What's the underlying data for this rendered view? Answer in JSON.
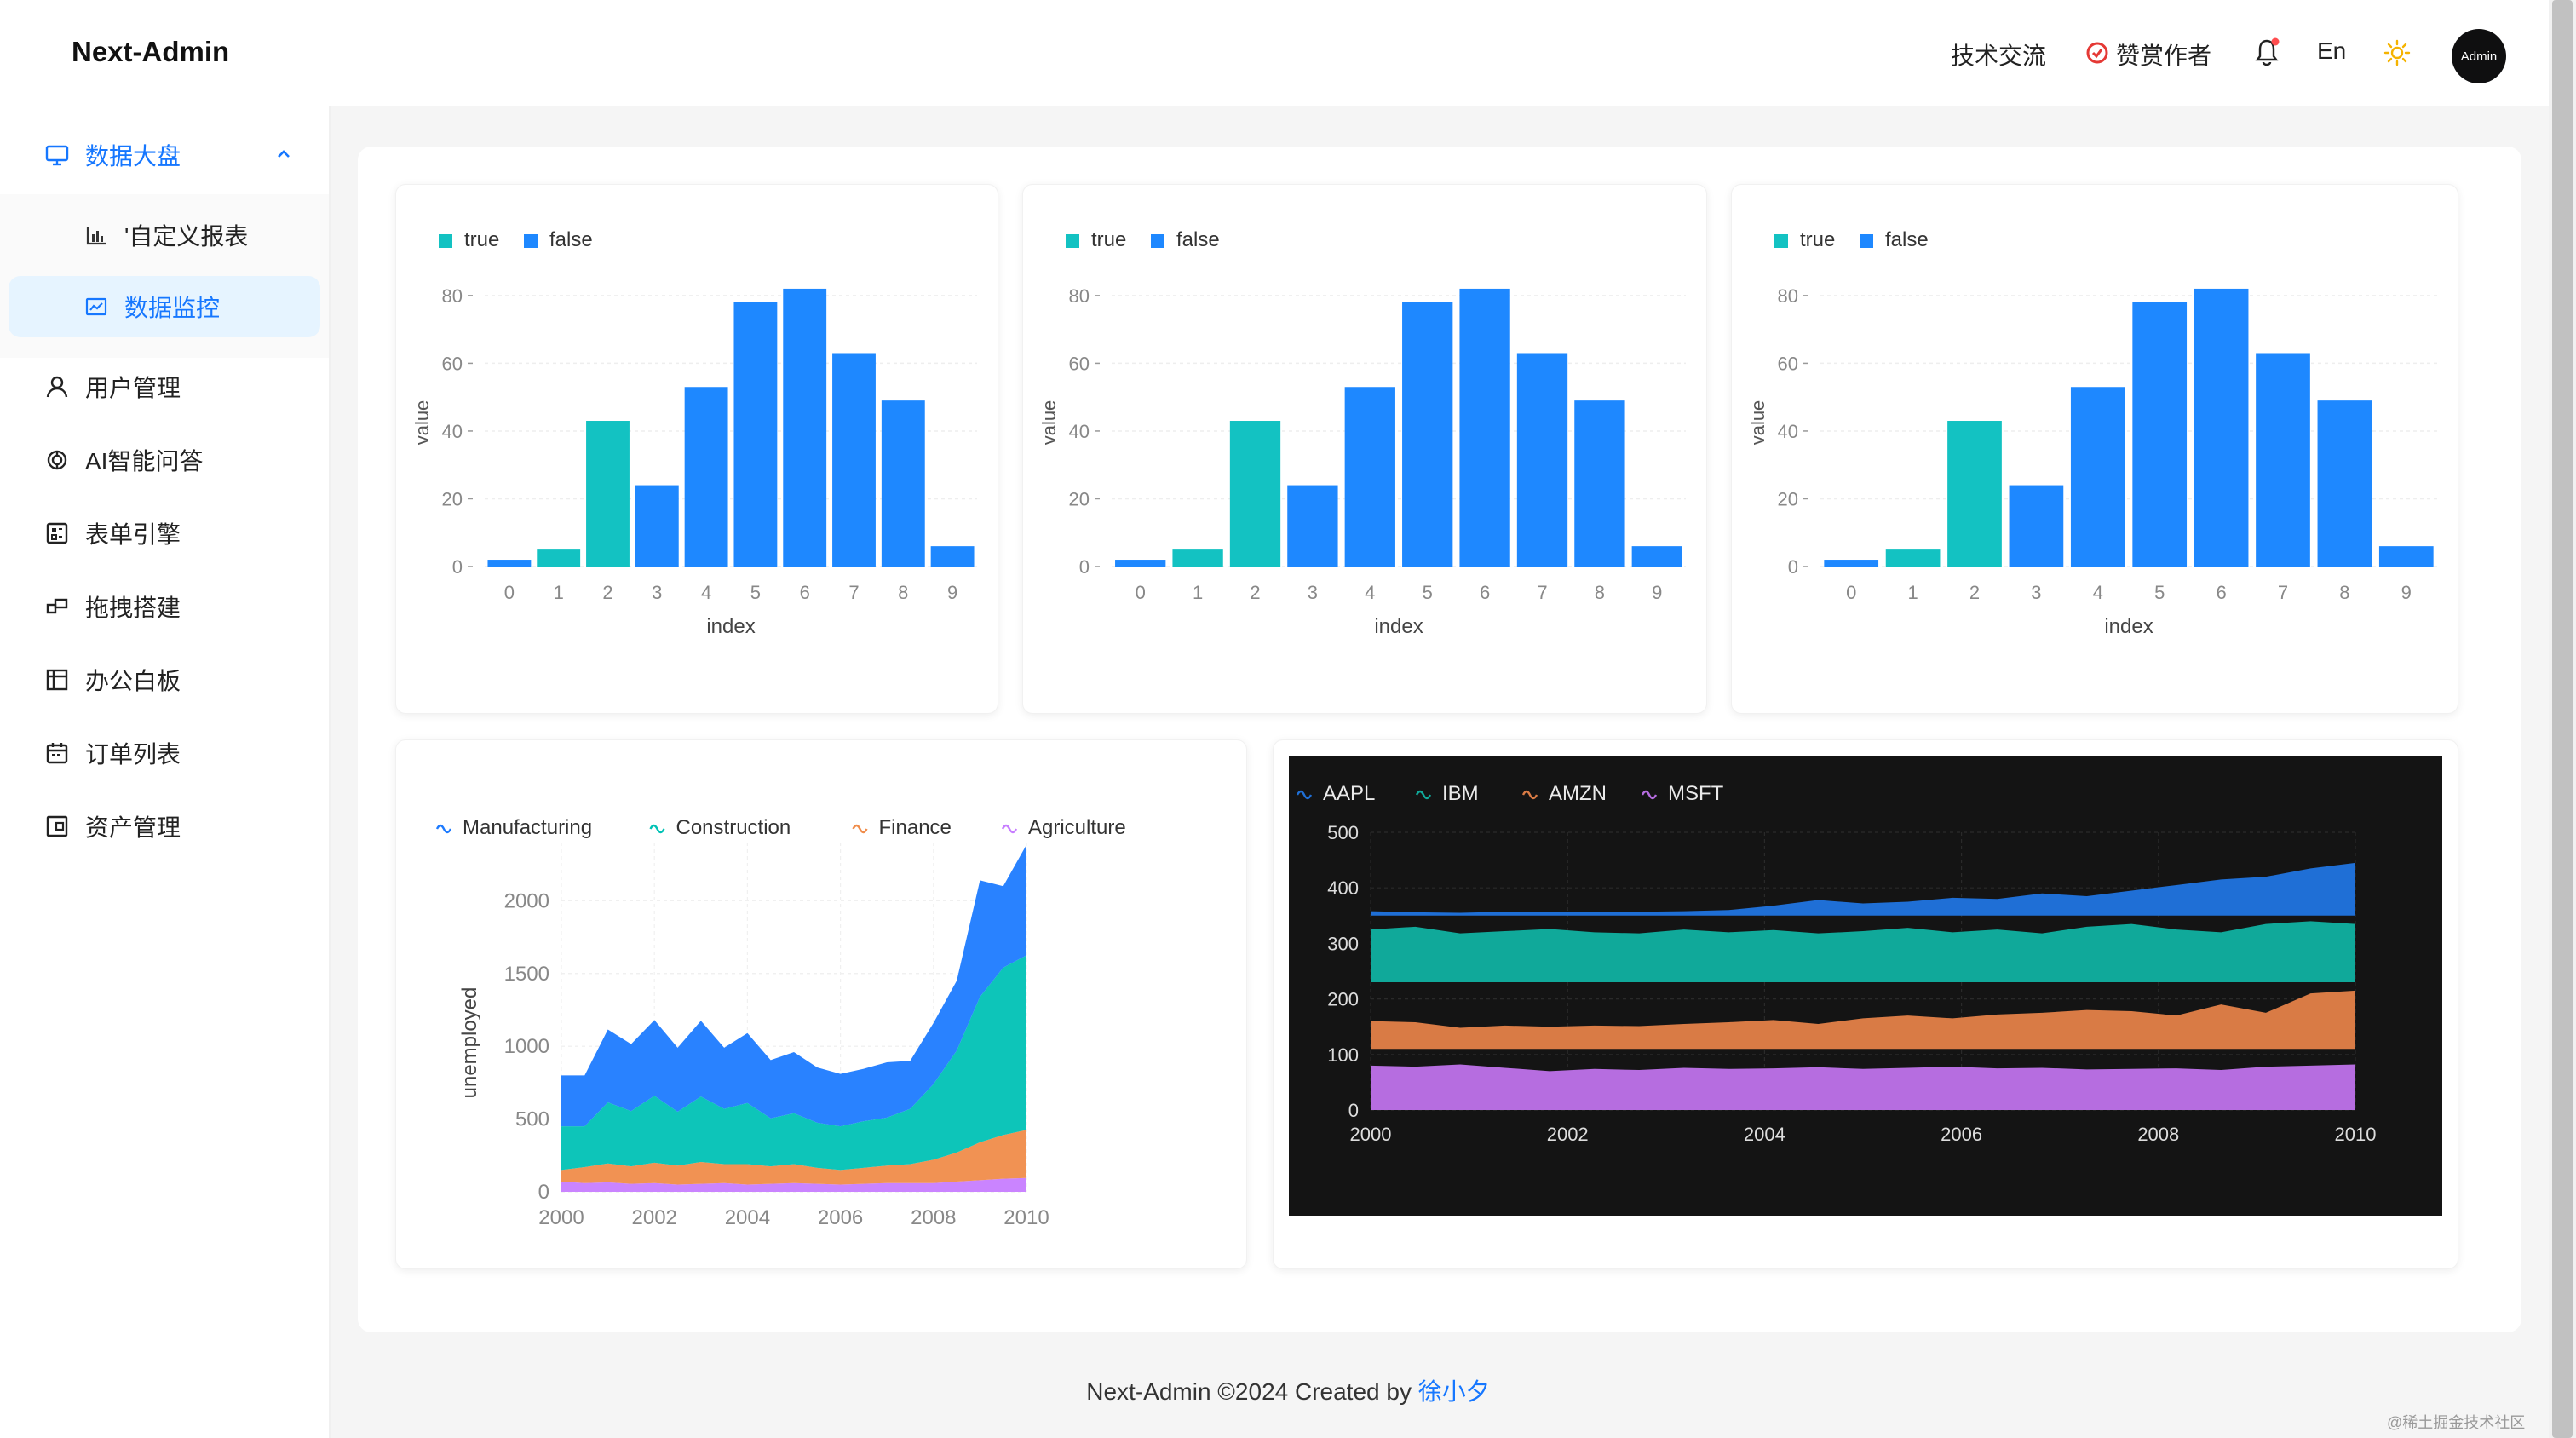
{
  "header": {
    "logo": "Next-Admin",
    "links": {
      "tech": "技术交流",
      "reward": "赞赏作者",
      "lang": "En"
    },
    "avatar": "Admin",
    "icons": [
      "reward-icon",
      "bell-icon",
      "sun-icon"
    ]
  },
  "sidebar": {
    "items": [
      {
        "label": "数据大盘",
        "icon": "monitor-icon"
      },
      {
        "label": "'自定义报表",
        "icon": "bar-chart-icon"
      },
      {
        "label": "数据监控",
        "icon": "line-chart-icon"
      },
      {
        "label": "用户管理",
        "icon": "user-icon"
      },
      {
        "label": "AI智能问答",
        "icon": "openai-icon"
      },
      {
        "label": "表单引擎",
        "icon": "form-icon"
      },
      {
        "label": "拖拽搭建",
        "icon": "drag-icon"
      },
      {
        "label": "办公白板",
        "icon": "whiteboard-icon"
      },
      {
        "label": "订单列表",
        "icon": "calendar-icon"
      },
      {
        "label": "资产管理",
        "icon": "asset-icon"
      }
    ]
  },
  "colors": {
    "accent": "#1677ff",
    "bar_true": "#13c2c2",
    "bar_false": "#1e88ff"
  },
  "chart_data": [
    {
      "type": "bar",
      "legend": [
        "true",
        "false"
      ],
      "categories": [
        "0",
        "1",
        "2",
        "3",
        "4",
        "5",
        "6",
        "7",
        "8",
        "9"
      ],
      "values": [
        2,
        5,
        43,
        24,
        53,
        78,
        82,
        63,
        49,
        6
      ],
      "groups": [
        "false",
        "true",
        "true",
        "false",
        "false",
        "false",
        "false",
        "false",
        "false",
        "false"
      ],
      "xlabel": "index",
      "ylabel": "value",
      "ylim": [
        0,
        85
      ],
      "yticks": [
        "0",
        "20",
        "40",
        "60",
        "80"
      ]
    },
    {
      "type": "bar",
      "legend": [
        "true",
        "false"
      ],
      "categories": [
        "0",
        "1",
        "2",
        "3",
        "4",
        "5",
        "6",
        "7",
        "8",
        "9"
      ],
      "values": [
        2,
        5,
        43,
        24,
        53,
        78,
        82,
        63,
        49,
        6
      ],
      "groups": [
        "false",
        "true",
        "true",
        "false",
        "false",
        "false",
        "false",
        "false",
        "false",
        "false"
      ],
      "xlabel": "index",
      "ylabel": "value",
      "ylim": [
        0,
        85
      ],
      "yticks": [
        "0",
        "20",
        "40",
        "60",
        "80"
      ]
    },
    {
      "type": "bar",
      "legend": [
        "true",
        "false"
      ],
      "categories": [
        "0",
        "1",
        "2",
        "3",
        "4",
        "5",
        "6",
        "7",
        "8",
        "9"
      ],
      "values": [
        2,
        5,
        43,
        24,
        53,
        78,
        82,
        63,
        49,
        6
      ],
      "groups": [
        "false",
        "true",
        "true",
        "false",
        "false",
        "false",
        "false",
        "false",
        "false",
        "false"
      ],
      "xlabel": "index",
      "ylabel": "value",
      "ylim": [
        0,
        85
      ],
      "yticks": [
        "0",
        "20",
        "40",
        "60",
        "80"
      ]
    },
    {
      "type": "area",
      "stacked": true,
      "ylabel": "unemployed",
      "xticks": [
        "2000",
        "2002",
        "2004",
        "2006",
        "2008",
        "2010"
      ],
      "yticks": [
        "0",
        "500",
        "1000",
        "1500",
        "2000"
      ],
      "ylim": [
        0,
        2400
      ],
      "x": [
        2000,
        2000.5,
        2001,
        2001.5,
        2002,
        2002.5,
        2003,
        2003.5,
        2004,
        2004.5,
        2005,
        2005.5,
        2006,
        2006.5,
        2007,
        2007.5,
        2008,
        2008.5,
        2009,
        2009.5,
        2010
      ],
      "series": [
        {
          "name": "Agriculture",
          "color": "#c77dff",
          "values": [
            70,
            60,
            65,
            55,
            60,
            50,
            55,
            60,
            50,
            55,
            60,
            55,
            50,
            55,
            60,
            60,
            60,
            70,
            80,
            90,
            95
          ]
        },
        {
          "name": "Finance",
          "color": "#f08c4a",
          "values": [
            80,
            110,
            130,
            120,
            140,
            130,
            150,
            130,
            140,
            120,
            130,
            110,
            100,
            110,
            120,
            130,
            160,
            200,
            260,
            300,
            330
          ]
        },
        {
          "name": "Construction",
          "color": "#00c2b5",
          "values": [
            300,
            280,
            420,
            380,
            460,
            370,
            450,
            380,
            420,
            330,
            350,
            310,
            300,
            320,
            330,
            380,
            520,
            700,
            1000,
            1150,
            1200
          ]
        },
        {
          "name": "Manufacturing",
          "color": "#1e7bff",
          "values": [
            350,
            350,
            500,
            460,
            520,
            440,
            520,
            420,
            480,
            400,
            420,
            380,
            360,
            360,
            380,
            330,
            420,
            480,
            800,
            560,
            760
          ]
        }
      ]
    },
    {
      "type": "area",
      "stacked": false,
      "theme": "dark",
      "xticks": [
        "2000",
        "2002",
        "2004",
        "2006",
        "2008",
        "2010"
      ],
      "yticks": [
        "0",
        "100",
        "200",
        "300",
        "400",
        "500"
      ],
      "ylim": [
        0,
        500
      ],
      "series": [
        {
          "name": "AAPL",
          "color": "#1f6fd6",
          "values": [
            358,
            356,
            355,
            357,
            356,
            356,
            357,
            358,
            360,
            368,
            378,
            372,
            375,
            382,
            380,
            390,
            385,
            395,
            405,
            415,
            420,
            435,
            445
          ]
        },
        {
          "name": "IBM",
          "color": "#10a99a",
          "values": [
            325,
            330,
            318,
            322,
            326,
            320,
            318,
            325,
            320,
            324,
            318,
            322,
            328,
            320,
            325,
            318,
            330,
            335,
            325,
            320,
            335,
            340,
            335
          ]
        },
        {
          "name": "AMZN",
          "color": "#d97b45",
          "values": [
            160,
            158,
            148,
            152,
            150,
            152,
            151,
            155,
            158,
            162,
            155,
            165,
            170,
            165,
            172,
            175,
            180,
            178,
            170,
            190,
            175,
            210,
            215
          ]
        },
        {
          "name": "MSFT",
          "color": "#b66de0",
          "values": [
            80,
            78,
            82,
            76,
            70,
            74,
            72,
            76,
            74,
            75,
            77,
            74,
            76,
            78,
            75,
            76,
            73,
            74,
            75,
            72,
            78,
            80,
            82
          ]
        }
      ]
    }
  ],
  "footer": {
    "text": "Next-Admin ©2024 Created by ",
    "author": "徐小夕"
  },
  "watermark": "@稀土掘金技术社区"
}
